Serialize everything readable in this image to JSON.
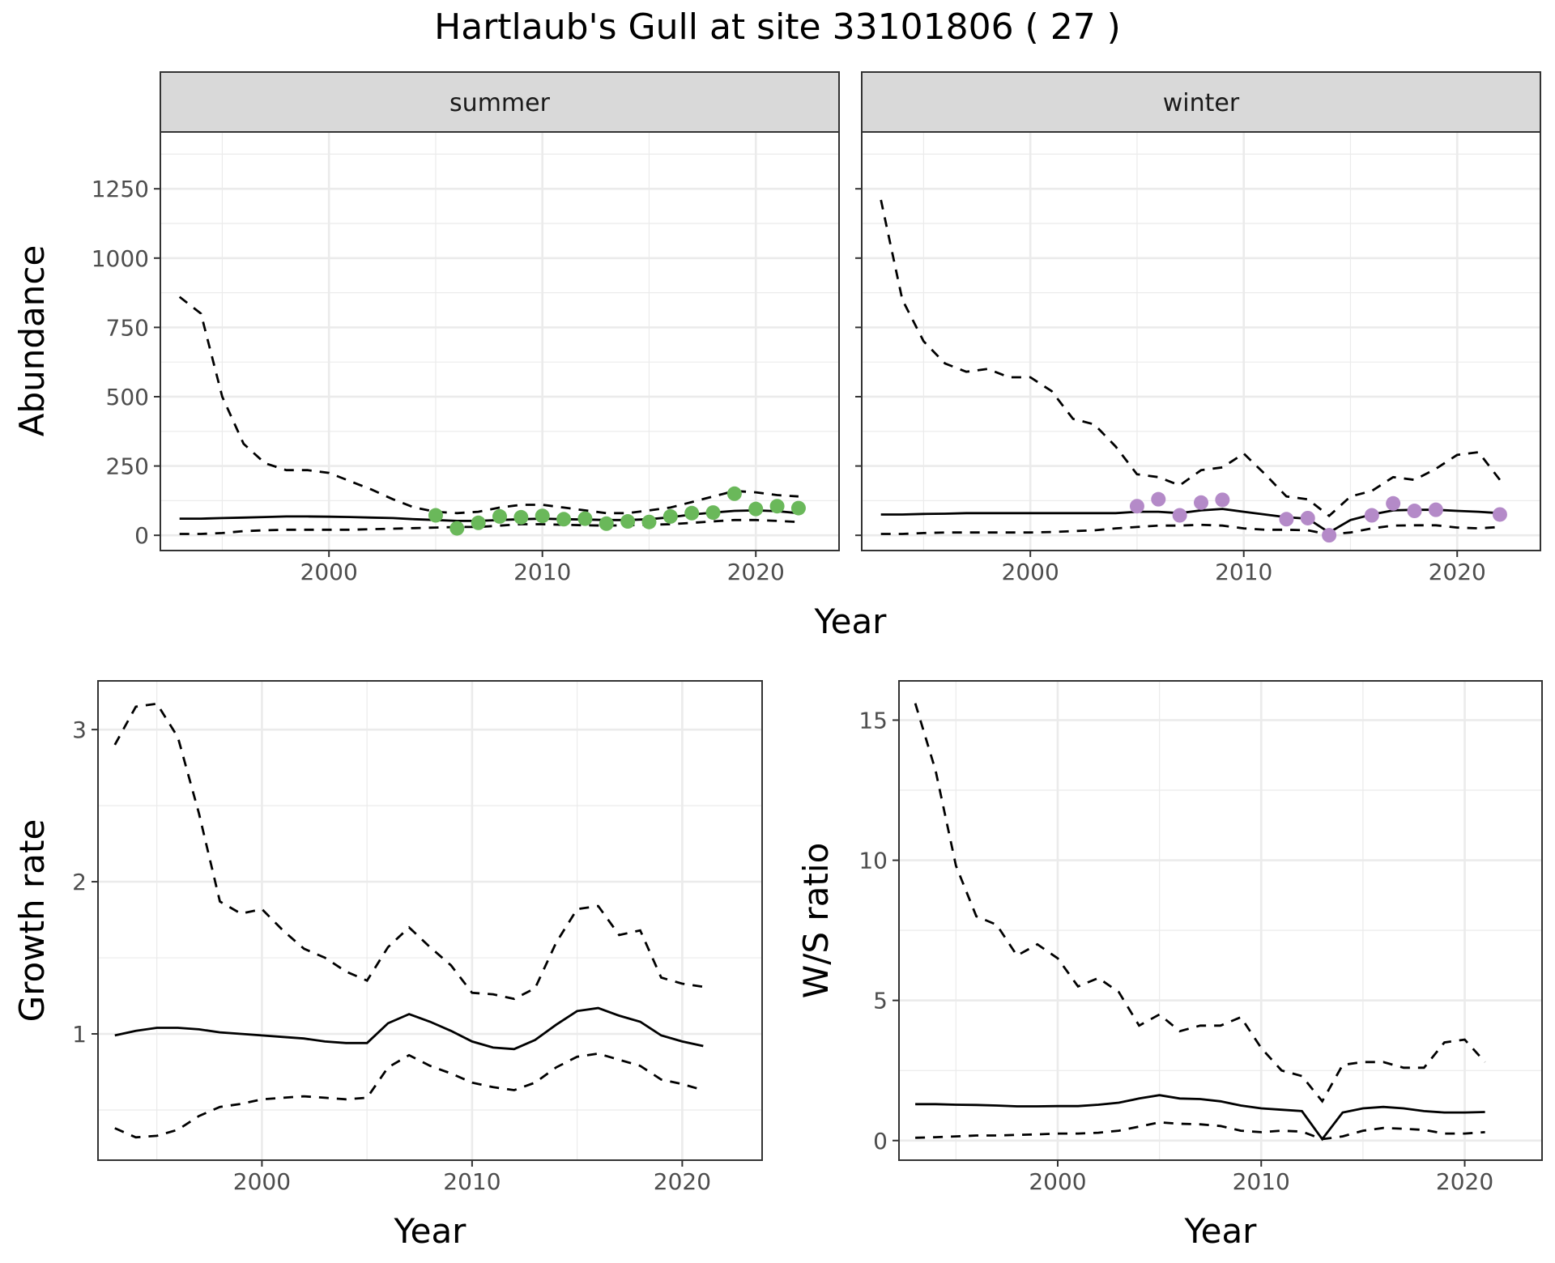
{
  "title": "Hartlaub's Gull at site 33101806 ( 27 )",
  "chart_data": [
    {
      "type": "line",
      "panel": "abundance",
      "facets": [
        "summer",
        "winter"
      ],
      "xlabel": "Year",
      "ylabel": "Abundance",
      "xlim": [
        1992.1,
        2023.9
      ],
      "ylim": [
        -55,
        1455
      ],
      "xticks": [
        2000,
        2010,
        2020
      ],
      "yticks": [
        0,
        250,
        500,
        750,
        1000,
        1250
      ],
      "grid": true,
      "colors": {
        "summer_points": "#6ab85a",
        "winter_points": "#b48ac8",
        "line": "#000000"
      },
      "facet_data": [
        {
          "name": "summer",
          "x": [
            1993,
            1994,
            1995,
            1996,
            1997,
            1998,
            1999,
            2000,
            2001,
            2002,
            2003,
            2004,
            2005,
            2006,
            2007,
            2008,
            2009,
            2010,
            2011,
            2012,
            2013,
            2014,
            2015,
            2016,
            2017,
            2018,
            2019,
            2020,
            2021,
            2022
          ],
          "mean": [
            60,
            60,
            62,
            64,
            66,
            68,
            68,
            67,
            66,
            64,
            62,
            58,
            55,
            52,
            52,
            55,
            58,
            60,
            58,
            57,
            55,
            55,
            58,
            65,
            75,
            82,
            88,
            90,
            87,
            80
          ],
          "upper": [
            860,
            800,
            500,
            330,
            260,
            235,
            235,
            225,
            195,
            165,
            130,
            100,
            85,
            80,
            85,
            100,
            110,
            110,
            100,
            90,
            80,
            80,
            90,
            100,
            120,
            140,
            160,
            155,
            145,
            140
          ],
          "lower": [
            5,
            5,
            8,
            15,
            18,
            20,
            20,
            20,
            20,
            22,
            24,
            26,
            28,
            30,
            30,
            35,
            40,
            40,
            38,
            36,
            35,
            36,
            38,
            40,
            45,
            50,
            55,
            55,
            52,
            48
          ],
          "observed_x": [
            2005,
            2006,
            2007,
            2008,
            2009,
            2010,
            2011,
            2012,
            2013,
            2014,
            2015,
            2016,
            2017,
            2018,
            2019,
            2020,
            2021,
            2022
          ],
          "observed_y": [
            72,
            25,
            45,
            68,
            65,
            70,
            58,
            60,
            42,
            50,
            48,
            68,
            80,
            82,
            150,
            95,
            105,
            98
          ]
        },
        {
          "name": "winter",
          "x": [
            1993,
            1994,
            1995,
            1996,
            1997,
            1998,
            1999,
            2000,
            2001,
            2002,
            2003,
            2004,
            2005,
            2006,
            2007,
            2008,
            2009,
            2010,
            2011,
            2012,
            2013,
            2014,
            2015,
            2016,
            2017,
            2018,
            2019,
            2020,
            2021,
            2022
          ],
          "mean": [
            75,
            75,
            77,
            78,
            80,
            80,
            80,
            80,
            80,
            80,
            80,
            80,
            85,
            85,
            80,
            90,
            95,
            85,
            75,
            65,
            60,
            10,
            55,
            75,
            90,
            92,
            92,
            88,
            85,
            80
          ],
          "upper": [
            1210,
            850,
            700,
            620,
            590,
            600,
            570,
            570,
            520,
            420,
            400,
            320,
            220,
            210,
            180,
            235,
            245,
            295,
            220,
            140,
            130,
            70,
            140,
            160,
            210,
            200,
            240,
            290,
            300,
            200
          ],
          "lower": [
            5,
            5,
            8,
            10,
            10,
            10,
            10,
            10,
            12,
            15,
            18,
            25,
            30,
            35,
            35,
            38,
            35,
            25,
            20,
            20,
            18,
            3,
            10,
            25,
            35,
            36,
            36,
            28,
            25,
            30
          ],
          "observed_x": [
            2005,
            2006,
            2007,
            2008,
            2009,
            2012,
            2013,
            2014,
            2016,
            2017,
            2018,
            2019,
            2022
          ],
          "observed_y": [
            105,
            130,
            72,
            118,
            128,
            58,
            62,
            0,
            72,
            115,
            88,
            92,
            75
          ]
        }
      ]
    },
    {
      "type": "line",
      "panel": "growth-rate",
      "xlabel": "Year",
      "ylabel": "Growth rate",
      "xlim": [
        1992.2,
        2023.8
      ],
      "ylim": [
        0.17,
        3.32
      ],
      "xticks": [
        2000,
        2010,
        2020
      ],
      "yticks": [
        1,
        2,
        3
      ],
      "grid": true,
      "x": [
        1993,
        1994,
        1995,
        1996,
        1997,
        1998,
        1999,
        2000,
        2001,
        2002,
        2003,
        2004,
        2005,
        2006,
        2007,
        2008,
        2009,
        2010,
        2011,
        2012,
        2013,
        2014,
        2015,
        2016,
        2017,
        2018,
        2019,
        2020,
        2021
      ],
      "mean": [
        0.99,
        1.02,
        1.04,
        1.04,
        1.03,
        1.01,
        1.0,
        0.99,
        0.98,
        0.97,
        0.95,
        0.94,
        0.94,
        1.07,
        1.13,
        1.08,
        1.02,
        0.95,
        0.91,
        0.9,
        0.96,
        1.06,
        1.15,
        1.17,
        1.12,
        1.08,
        0.99,
        0.95,
        0.92
      ],
      "upper": [
        2.9,
        3.15,
        3.17,
        2.95,
        2.45,
        1.87,
        1.79,
        1.82,
        1.68,
        1.56,
        1.5,
        1.41,
        1.35,
        1.57,
        1.7,
        1.57,
        1.45,
        1.27,
        1.26,
        1.23,
        1.3,
        1.6,
        1.82,
        1.84,
        1.65,
        1.68,
        1.37,
        1.33,
        1.31
      ],
      "lower": [
        0.38,
        0.32,
        0.33,
        0.37,
        0.46,
        0.52,
        0.54,
        0.57,
        0.58,
        0.59,
        0.58,
        0.57,
        0.58,
        0.78,
        0.86,
        0.79,
        0.74,
        0.68,
        0.65,
        0.63,
        0.68,
        0.78,
        0.85,
        0.87,
        0.83,
        0.79,
        0.7,
        0.67,
        0.63
      ]
    },
    {
      "type": "line",
      "panel": "ws-ratio",
      "xlabel": "Year",
      "ylabel": "W/S ratio",
      "xlim": [
        1992.2,
        2023.8
      ],
      "ylim": [
        -0.7,
        16.4
      ],
      "xticks": [
        2000,
        2010,
        2020
      ],
      "yticks": [
        0,
        5,
        10,
        15
      ],
      "grid": true,
      "x": [
        1993,
        1994,
        1995,
        1996,
        1997,
        1998,
        1999,
        2000,
        2001,
        2002,
        2003,
        2004,
        2005,
        2006,
        2007,
        2008,
        2009,
        2010,
        2011,
        2012,
        2013,
        2014,
        2015,
        2016,
        2017,
        2018,
        2019,
        2020,
        2021
      ],
      "mean": [
        1.3,
        1.3,
        1.28,
        1.27,
        1.25,
        1.22,
        1.22,
        1.23,
        1.23,
        1.28,
        1.35,
        1.5,
        1.62,
        1.5,
        1.48,
        1.4,
        1.25,
        1.15,
        1.1,
        1.05,
        0.05,
        1.0,
        1.15,
        1.2,
        1.15,
        1.05,
        1.0,
        1.0,
        1.02
      ],
      "upper": [
        15.6,
        13.2,
        9.8,
        8.0,
        7.7,
        6.6,
        7.0,
        6.5,
        5.5,
        5.8,
        5.3,
        4.1,
        4.5,
        3.9,
        4.1,
        4.1,
        4.4,
        3.3,
        2.5,
        2.3,
        1.4,
        2.7,
        2.8,
        2.8,
        2.6,
        2.6,
        3.5,
        3.6,
        2.8
      ],
      "lower": [
        0.1,
        0.12,
        0.15,
        0.18,
        0.18,
        0.2,
        0.22,
        0.25,
        0.25,
        0.28,
        0.35,
        0.5,
        0.65,
        0.6,
        0.58,
        0.52,
        0.35,
        0.3,
        0.35,
        0.32,
        0.05,
        0.15,
        0.35,
        0.45,
        0.42,
        0.38,
        0.25,
        0.25,
        0.3
      ]
    }
  ]
}
